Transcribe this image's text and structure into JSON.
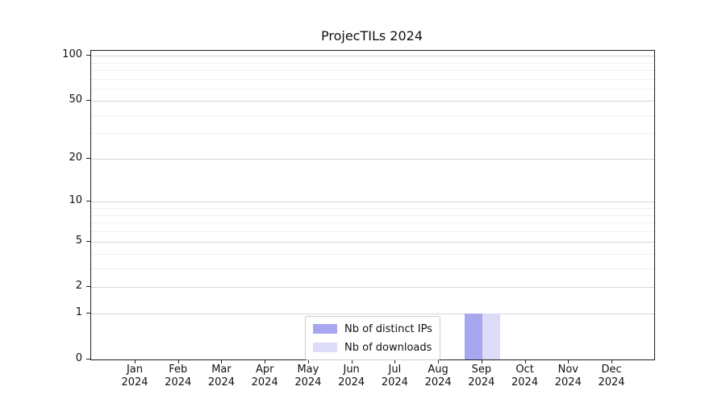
{
  "title": "ProjecTILs 2024",
  "chart_data": {
    "type": "bar",
    "title": "ProjecTILs 2024",
    "x_months": [
      "Jan",
      "Feb",
      "Mar",
      "Apr",
      "May",
      "Jun",
      "Jul",
      "Aug",
      "Sep",
      "Oct",
      "Nov",
      "Dec"
    ],
    "x_year": "2024",
    "series": [
      {
        "name": "Nb of distinct IPs",
        "color": "#a7a7f0",
        "values": [
          0,
          0,
          0,
          0,
          0,
          0,
          0,
          0,
          1,
          0,
          0,
          0
        ]
      },
      {
        "name": "Nb of downloads",
        "color": "#dcdcf8",
        "values": [
          0,
          0,
          0,
          0,
          0,
          0,
          0,
          0,
          1,
          0,
          0,
          0
        ]
      }
    ],
    "y_axis": {
      "scale": "log1p",
      "ticks": [
        0,
        1,
        2,
        5,
        10,
        20,
        50,
        100
      ],
      "minor_gridlines": [
        3,
        4,
        6,
        7,
        8,
        9,
        30,
        40,
        60,
        70,
        80,
        90
      ],
      "min": 0,
      "max": 100
    },
    "legend_position": "lower center",
    "grid": true
  }
}
